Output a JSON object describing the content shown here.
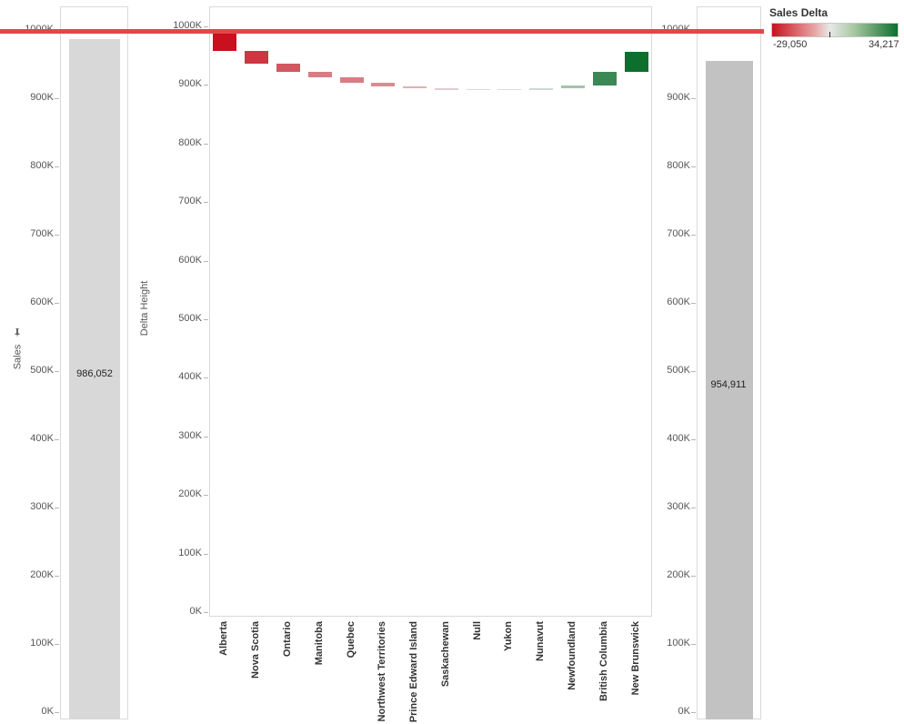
{
  "chart_data": {
    "type": "bar",
    "left_panel": {
      "type": "bar",
      "ylabel": "Sales",
      "ylabel_icon": "pin-icon",
      "ylim": [
        0,
        1000000
      ],
      "y_ticks": [
        "0K",
        "100K",
        "200K",
        "300K",
        "400K",
        "500K",
        "600K",
        "700K",
        "800K",
        "900K",
        "1000K"
      ],
      "values": [
        986052
      ],
      "data_labels": [
        "986,052"
      ],
      "bar_color": "#d8d8d8"
    },
    "middle_panel": {
      "type": "bar",
      "ylabel": "Delta Height",
      "ylim": [
        0,
        1000000
      ],
      "y_ticks": [
        "0K",
        "100K",
        "200K",
        "300K",
        "400K",
        "500K",
        "600K",
        "700K",
        "800K",
        "900K",
        "1000K"
      ],
      "categories": [
        "Alberta",
        "Nova Scotia",
        "Ontario",
        "Manitoba",
        "Quebec",
        "Northwest Territories",
        "Prince Edward Island",
        "Saskachewan",
        "Null",
        "Yukon",
        "Nunavut",
        "Newfoundland",
        "British Columbia",
        "New Brunswick"
      ],
      "floating_bars": [
        {
          "start": 987000,
          "end": 958000,
          "delta": -29050
        },
        {
          "start": 958000,
          "end": 937000,
          "delta": -21000
        },
        {
          "start": 937000,
          "end": 922000,
          "delta": -15000
        },
        {
          "start": 922000,
          "end": 913000,
          "delta": -9000
        },
        {
          "start": 913000,
          "end": 904000,
          "delta": -9000
        },
        {
          "start": 904000,
          "end": 897000,
          "delta": -7000
        },
        {
          "start": 897000,
          "end": 894000,
          "delta": -3000
        },
        {
          "start": 894000,
          "end": 893000,
          "delta": -1000
        },
        {
          "start": 893000,
          "end": 892500,
          "delta": -500
        },
        {
          "start": 892500,
          "end": 893000,
          "delta": 500
        },
        {
          "start": 893000,
          "end": 894000,
          "delta": 1000
        },
        {
          "start": 894000,
          "end": 899000,
          "delta": 5000
        },
        {
          "start": 899000,
          "end": 922000,
          "delta": 23000
        },
        {
          "start": 922000,
          "end": 956000,
          "delta": 34217
        }
      ]
    },
    "right_panel": {
      "type": "bar",
      "ylim": [
        0,
        1000000
      ],
      "y_ticks": [
        "0K",
        "100K",
        "200K",
        "300K",
        "400K",
        "500K",
        "600K",
        "700K",
        "800K",
        "900K",
        "1000K"
      ],
      "values": [
        954911
      ],
      "data_labels": [
        "954,911"
      ],
      "bar_color": "#c2c2c2"
    },
    "reference_line": {
      "value": 993000,
      "color": "#e0474c"
    },
    "legend": {
      "title": "Sales Delta",
      "min_label": "-29,050",
      "max_label": "34,217",
      "min": -29050,
      "max": 34217,
      "neg_color": "#c8101e",
      "mid_color": "#e8e8e8",
      "pos_color": "#0d6e2e"
    }
  }
}
